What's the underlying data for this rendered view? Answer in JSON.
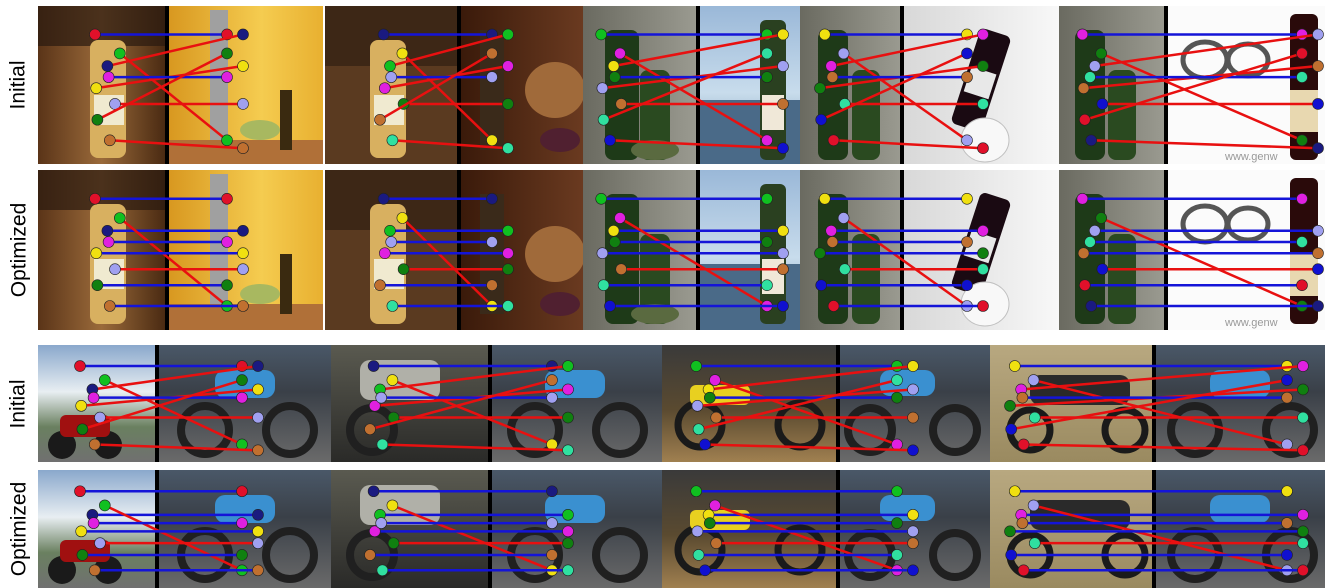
{
  "rows": [
    {
      "label": "Initial"
    },
    {
      "label": "Optimized"
    },
    {
      "label": "Initial"
    },
    {
      "label": "Optimized"
    }
  ],
  "watermark": "www.genw",
  "line_colors": {
    "wrong": "#e81010",
    "correct": "#1414d8"
  },
  "keypoint_colors": [
    "#e0102a",
    "#1a1a80",
    "#10c020",
    "#f0e010",
    "#e020e0",
    "#a0a0f0",
    "#108010",
    "#c07030",
    "#30e0a0",
    "#1010d0"
  ]
}
